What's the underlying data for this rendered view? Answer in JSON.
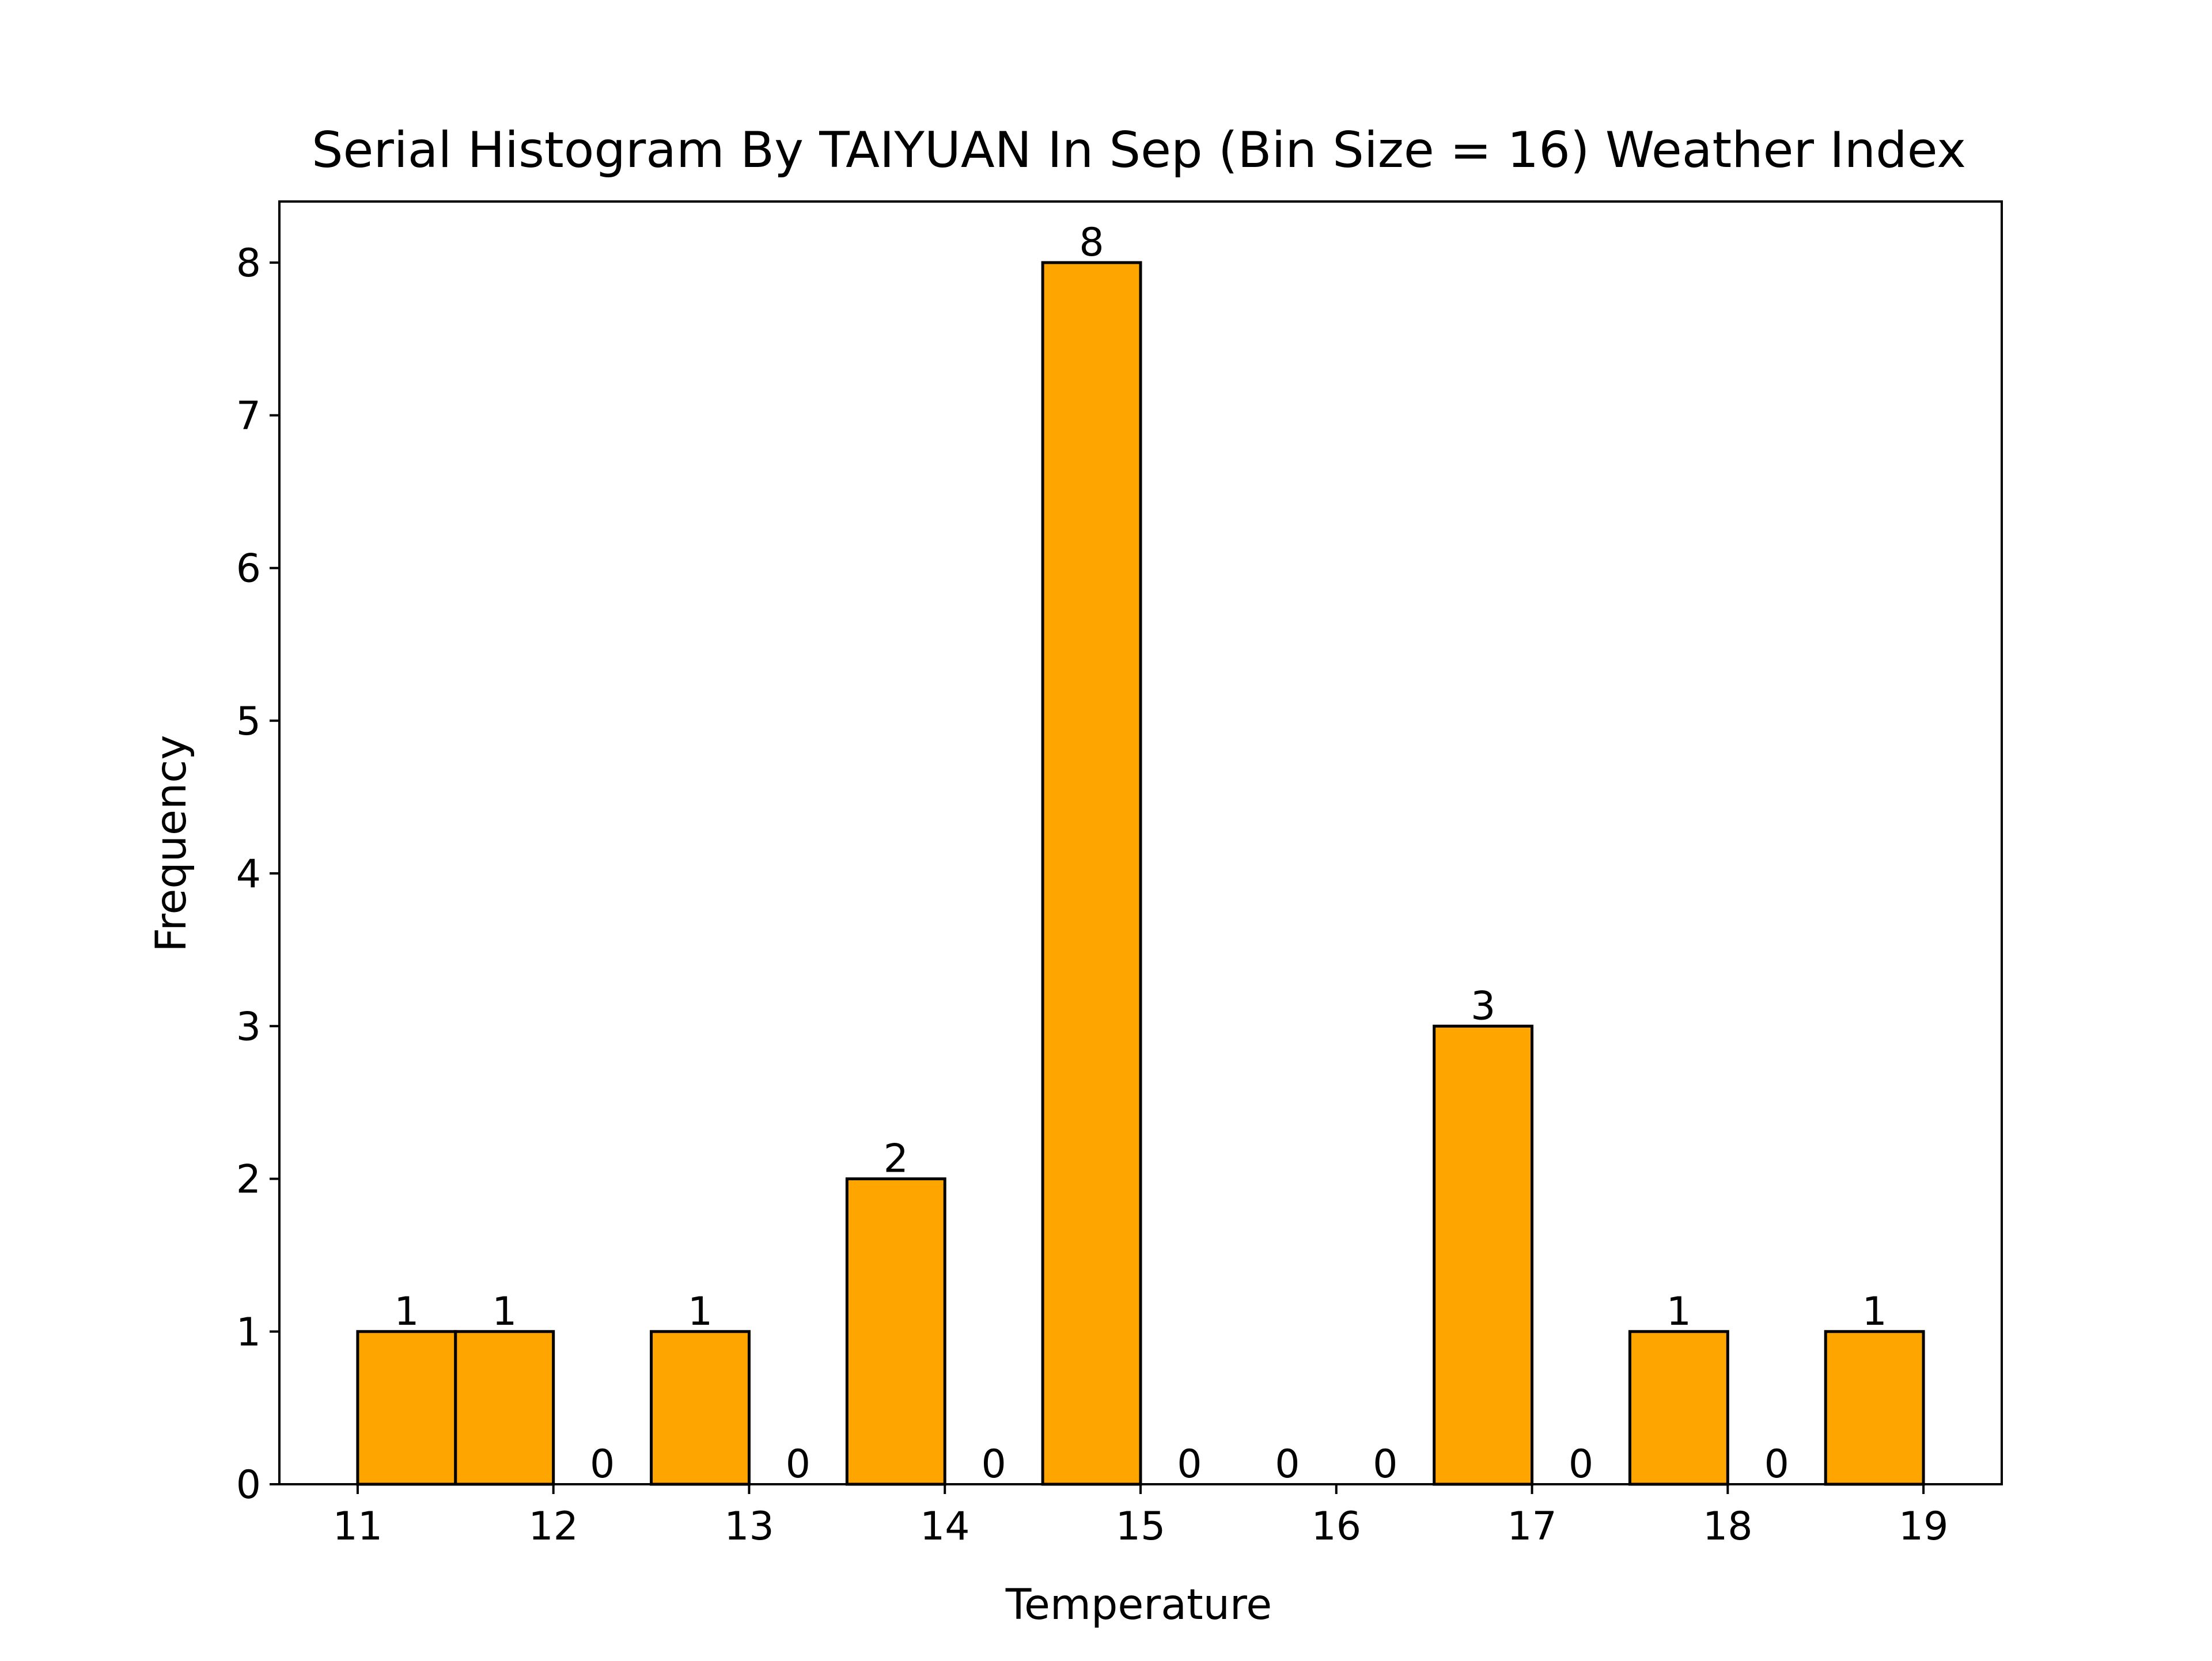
{
  "chart_data": {
    "type": "bar",
    "title": "Serial Histogram By TAIYUAN In Sep (Bin Size = 16) Weather Index",
    "xlabel": "Temperature",
    "ylabel": "Frequency",
    "bins": [
      {
        "start": 11.0,
        "end": 11.5,
        "count": 1
      },
      {
        "start": 11.5,
        "end": 12.0,
        "count": 1
      },
      {
        "start": 12.0,
        "end": 12.5,
        "count": 0
      },
      {
        "start": 12.5,
        "end": 13.0,
        "count": 1
      },
      {
        "start": 13.0,
        "end": 13.5,
        "count": 0
      },
      {
        "start": 13.5,
        "end": 14.0,
        "count": 2
      },
      {
        "start": 14.0,
        "end": 14.5,
        "count": 0
      },
      {
        "start": 14.5,
        "end": 15.0,
        "count": 8
      },
      {
        "start": 15.0,
        "end": 15.5,
        "count": 0
      },
      {
        "start": 15.5,
        "end": 16.0,
        "count": 0
      },
      {
        "start": 16.0,
        "end": 16.5,
        "count": 0
      },
      {
        "start": 16.5,
        "end": 17.0,
        "count": 3
      },
      {
        "start": 17.0,
        "end": 17.5,
        "count": 0
      },
      {
        "start": 17.5,
        "end": 18.0,
        "count": 1
      },
      {
        "start": 18.0,
        "end": 18.5,
        "count": 0
      },
      {
        "start": 18.5,
        "end": 19.0,
        "count": 1
      }
    ],
    "xlim": [
      10.6,
      19.4
    ],
    "ylim": [
      0,
      8.4
    ],
    "xticks": [
      "11",
      "12",
      "13",
      "14",
      "15",
      "16",
      "17",
      "18",
      "19"
    ],
    "yticks": [
      "0",
      "1",
      "2",
      "3",
      "4",
      "5",
      "6",
      "7",
      "8"
    ],
    "grid": false,
    "bar_color": "#FFA500",
    "edge_color": "#000000"
  }
}
